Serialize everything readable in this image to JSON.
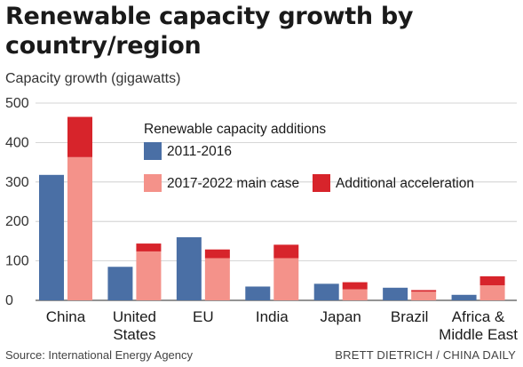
{
  "chart_data": {
    "type": "bar",
    "title": "Renewable capacity growth by country/region",
    "ylabel": "Capacity growth (gigawatts)",
    "xlabel": "",
    "ylim": [
      0,
      500
    ],
    "yticks": [
      0,
      100,
      200,
      300,
      400,
      500
    ],
    "categories": [
      "China",
      "United States",
      "EU",
      "India",
      "Japan",
      "Brazil",
      "Africa & Middle East"
    ],
    "category_lines": [
      [
        "China"
      ],
      [
        "United",
        "States"
      ],
      [
        "EU"
      ],
      [
        "India"
      ],
      [
        "Japan"
      ],
      [
        "Brazil"
      ],
      [
        "Africa &",
        "Middle East"
      ]
    ],
    "legend_title": "Renewable capacity additions",
    "legend_placement": "top-right",
    "grid": true,
    "series": [
      {
        "name": "2011-2016",
        "color": "#4a6fa5",
        "values": [
          318,
          85,
          160,
          35,
          42,
          32,
          14
        ]
      },
      {
        "name": "2017-2022 main case",
        "color": "#f4928a",
        "values": [
          363,
          124,
          107,
          107,
          28,
          22,
          38
        ],
        "stack": "b"
      },
      {
        "name": "Additional acceleration",
        "color": "#d7242b",
        "values": [
          102,
          20,
          22,
          34,
          18,
          4,
          23
        ],
        "stack": "b"
      }
    ]
  },
  "footer": {
    "source": "Source: International Energy Agency",
    "credit": "BRETT DIETRICH / CHINA DAILY"
  }
}
